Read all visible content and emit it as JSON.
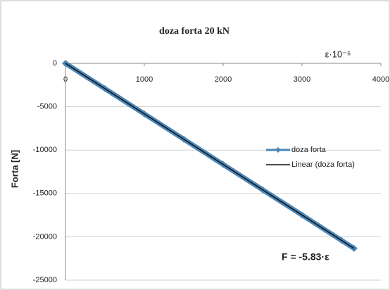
{
  "chart_data": {
    "type": "scatter",
    "title": "doza forta   20 kN",
    "xlabel": "ε·10⁻⁶",
    "ylabel": "Forta [N]",
    "annotation": "F = -5.83·ε",
    "xlim": [
      0,
      4000
    ],
    "xticks": [
      0,
      1000,
      2000,
      3000,
      4000
    ],
    "ylim": [
      -25000,
      0
    ],
    "yticks": [
      0,
      -5000,
      -10000,
      -15000,
      -20000,
      -25000
    ],
    "grid": true,
    "legend": "right",
    "series": [
      {
        "name": "doza forta",
        "color": "#4a86b8",
        "marker": "diamond",
        "x": [
          0,
          500,
          1000,
          1500,
          2000,
          2500,
          3000,
          3500,
          3660
        ],
        "values": [
          0,
          -2915,
          -5830,
          -8745,
          -11660,
          -14575,
          -17490,
          -20405,
          -21338
        ]
      },
      {
        "name": "Linear (doza forta)",
        "color": "#111111",
        "marker": "none",
        "x": [
          0,
          3660
        ],
        "values": [
          0,
          -21338
        ]
      }
    ]
  }
}
